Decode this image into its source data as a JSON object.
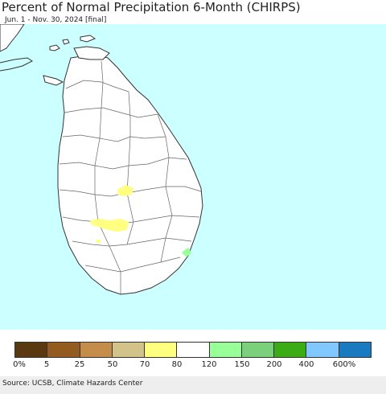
{
  "header": {
    "title": "Percent of Normal Precipitation 6-Month (CHIRPS)",
    "subtitle": "Jun. 1 - Nov. 30, 2024 [final]"
  },
  "map": {
    "region": "Sri Lanka",
    "ocean_color": "#ccffff",
    "land_color": "#ffffff",
    "border_color": "#333333",
    "highlight_70_80_color": "#ffff80",
    "highlight_120_150_color": "#99ff99"
  },
  "legend": {
    "colors": [
      "#5a3810",
      "#935b20",
      "#c48e4a",
      "#d2c38a",
      "#ffff80",
      "#ffffff",
      "#99ff99",
      "#7bd07b",
      "#3bac16",
      "#80c8ff",
      "#1a7abf"
    ],
    "labels": [
      "0%",
      "5",
      "25",
      "50",
      "70",
      "80",
      "120",
      "150",
      "200",
      "400",
      "600%"
    ]
  },
  "footer": {
    "source": "Source: UCSB, Climate Hazards Center"
  }
}
